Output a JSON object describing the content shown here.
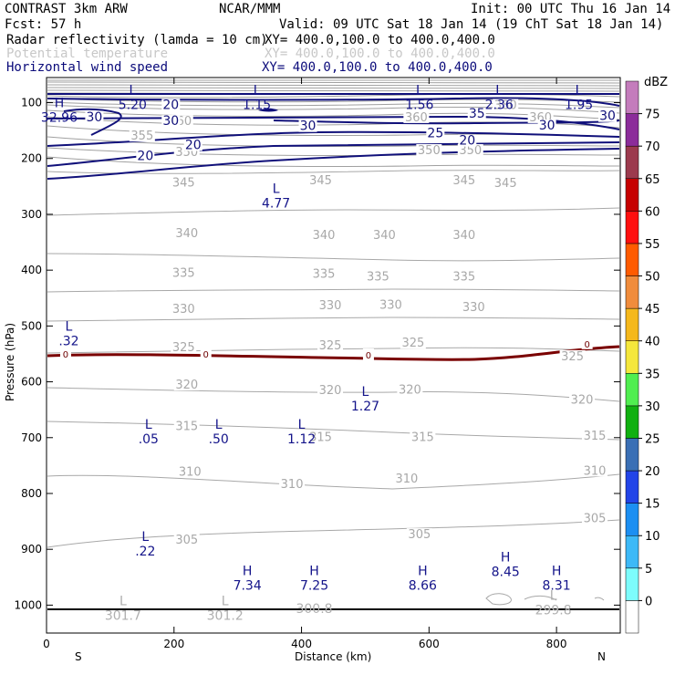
{
  "header": {
    "model": "CONTRAST  3km ARW",
    "org": "NCAR/MMM",
    "init": "Init: 00 UTC Thu 16 Jan 14",
    "fcst": "Fcst:   57 h",
    "valid": "Valid: 09 UTC Sat 18 Jan 14 (19 ChT Sat 18 Jan 14)",
    "fields": [
      {
        "name": "Radar reflectivity (lamda = 10 cm)",
        "xy": "XY= 400.0,100.0 to 400.0,400.0",
        "color": "#000000"
      },
      {
        "name": "Potential temperature",
        "xy": "XY= 400.0,100.0 to 400.0,400.0",
        "color": "#c8c8c8"
      },
      {
        "name": "Horizontal wind speed",
        "xy": "XY= 400.0,100.0 to 400.0,400.0",
        "color": "#0a0a7a"
      }
    ]
  },
  "chart_data": {
    "type": "contour",
    "xlabel": "Distance (km)",
    "ylabel": "Pressure (hPa)",
    "xlim": [
      0,
      900
    ],
    "ylim": [
      1050,
      55
    ],
    "xticks": [
      "0",
      "200",
      "400",
      "600",
      "800"
    ],
    "yticks": [
      "100",
      "200",
      "300",
      "400",
      "500",
      "600",
      "700",
      "800",
      "900",
      "1000"
    ],
    "x_end_labels": {
      "left": "S",
      "right": "N"
    },
    "colorbar": {
      "unit": "dBZ",
      "levels": [
        "0",
        "5",
        "10",
        "15",
        "20",
        "25",
        "30",
        "35",
        "40",
        "45",
        "50",
        "55",
        "60",
        "65",
        "70",
        "75"
      ],
      "colors": [
        "#ffffff",
        "#7dfcfc",
        "#3db9f7",
        "#1c8ff2",
        "#2244e8",
        "#3a6fb5",
        "#10b010",
        "#50ee50",
        "#f5e73c",
        "#f5b81c",
        "#f08c3c",
        "#ff5b00",
        "#ff0f0f",
        "#c60000",
        "#9c3a4e",
        "#8c2c9a",
        "#c47cbc"
      ]
    },
    "theta_labels": [
      {
        "text": "380",
        "x": 720,
        "p": 108
      },
      {
        "text": "360",
        "x": 210,
        "p": 137
      },
      {
        "text": "360",
        "x": 580,
        "p": 130
      },
      {
        "text": "360",
        "x": 775,
        "p": 130
      },
      {
        "text": "355",
        "x": 150,
        "p": 163
      },
      {
        "text": "350",
        "x": 220,
        "p": 192
      },
      {
        "text": "350",
        "x": 600,
        "p": 189
      },
      {
        "text": "350",
        "x": 665,
        "p": 189
      },
      {
        "text": "345",
        "x": 215,
        "p": 247
      },
      {
        "text": "345",
        "x": 430,
        "p": 243
      },
      {
        "text": "345",
        "x": 655,
        "p": 243
      },
      {
        "text": "345",
        "x": 720,
        "p": 248
      },
      {
        "text": "340",
        "x": 220,
        "p": 338
      },
      {
        "text": "340",
        "x": 435,
        "p": 341
      },
      {
        "text": "340",
        "x": 530,
        "p": 341
      },
      {
        "text": "340",
        "x": 655,
        "p": 341
      },
      {
        "text": "335",
        "x": 215,
        "p": 409
      },
      {
        "text": "335",
        "x": 435,
        "p": 410
      },
      {
        "text": "335",
        "x": 520,
        "p": 415
      },
      {
        "text": "335",
        "x": 655,
        "p": 415
      },
      {
        "text": "330",
        "x": 215,
        "p": 473
      },
      {
        "text": "330",
        "x": 445,
        "p": 467
      },
      {
        "text": "330",
        "x": 540,
        "p": 466
      },
      {
        "text": "330",
        "x": 670,
        "p": 470
      },
      {
        "text": "325",
        "x": 215,
        "p": 542
      },
      {
        "text": "325",
        "x": 445,
        "p": 539
      },
      {
        "text": "325",
        "x": 575,
        "p": 534
      },
      {
        "text": "325",
        "x": 825,
        "p": 558
      },
      {
        "text": "320",
        "x": 220,
        "p": 609
      },
      {
        "text": "320",
        "x": 445,
        "p": 619
      },
      {
        "text": "320",
        "x": 570,
        "p": 618
      },
      {
        "text": "320",
        "x": 840,
        "p": 636
      },
      {
        "text": "315",
        "x": 220,
        "p": 683
      },
      {
        "text": "315",
        "x": 430,
        "p": 703
      },
      {
        "text": "315",
        "x": 590,
        "p": 703
      },
      {
        "text": "315",
        "x": 860,
        "p": 700
      },
      {
        "text": "310",
        "x": 225,
        "p": 765
      },
      {
        "text": "310",
        "x": 385,
        "p": 787
      },
      {
        "text": "310",
        "x": 565,
        "p": 777
      },
      {
        "text": "310",
        "x": 860,
        "p": 763
      },
      {
        "text": "305",
        "x": 220,
        "p": 887
      },
      {
        "text": "305",
        "x": 585,
        "p": 877
      },
      {
        "text": "305",
        "x": 860,
        "p": 848
      }
    ],
    "wind_labels": [
      {
        "text": "20",
        "x": 195,
        "p": 108
      },
      {
        "text": "30",
        "x": 75,
        "p": 130
      },
      {
        "text": "30",
        "x": 195,
        "p": 137
      },
      {
        "text": "30",
        "x": 410,
        "p": 146
      },
      {
        "text": "35",
        "x": 675,
        "p": 124
      },
      {
        "text": "30",
        "x": 785,
        "p": 145
      },
      {
        "text": "30",
        "x": 880,
        "p": 128
      },
      {
        "text": "25",
        "x": 610,
        "p": 159
      },
      {
        "text": "20",
        "x": 660,
        "p": 172
      },
      {
        "text": "20",
        "x": 230,
        "p": 180
      },
      {
        "text": "20",
        "x": 155,
        "p": 200
      }
    ],
    "zero_dbz_labels": [
      {
        "text": "0",
        "x": 30,
        "p": 553
      },
      {
        "text": "0",
        "x": 250,
        "p": 553
      },
      {
        "text": "0",
        "x": 505,
        "p": 555
      },
      {
        "text": "0",
        "x": 848,
        "p": 535
      }
    ],
    "extrema": [
      {
        "letter": "L",
        "value": "5.20",
        "x": 135,
        "p": 85,
        "color": "#14148a"
      },
      {
        "letter": "L",
        "value": "1.15",
        "x": 330,
        "p": 85,
        "color": "#14148a"
      },
      {
        "letter": "L",
        "value": "1.56",
        "x": 585,
        "p": 85,
        "color": "#14148a"
      },
      {
        "letter": "L",
        "value": "2.36",
        "x": 710,
        "p": 85,
        "color": "#14148a"
      },
      {
        "letter": "L",
        "value": "1.95",
        "x": 835,
        "p": 85,
        "color": "#14148a"
      },
      {
        "letter": "H",
        "value": "32.96",
        "x": 20,
        "p": 108,
        "color": "#14148a"
      },
      {
        "letter": "L",
        "value": "4.77",
        "x": 360,
        "p": 262,
        "color": "#14148a"
      },
      {
        "letter": "L",
        "value": ".32",
        "x": 35,
        "p": 508,
        "color": "#14148a"
      },
      {
        "letter": "L",
        "value": "1.27",
        "x": 500,
        "p": 625,
        "color": "#14148a"
      },
      {
        "letter": "L",
        "value": ".05",
        "x": 160,
        "p": 684,
        "color": "#14148a"
      },
      {
        "letter": "L",
        "value": ".50",
        "x": 270,
        "p": 684,
        "color": "#14148a"
      },
      {
        "letter": "L",
        "value": "1.12",
        "x": 400,
        "p": 684,
        "color": "#14148a"
      },
      {
        "letter": "L",
        "value": ".22",
        "x": 155,
        "p": 885,
        "color": "#14148a"
      },
      {
        "letter": "H",
        "value": "7.34",
        "x": 315,
        "p": 946,
        "color": "#14148a"
      },
      {
        "letter": "H",
        "value": "7.25",
        "x": 420,
        "p": 946,
        "color": "#14148a"
      },
      {
        "letter": "H",
        "value": "8.66",
        "x": 590,
        "p": 946,
        "color": "#14148a"
      },
      {
        "letter": "H",
        "value": "8.45",
        "x": 720,
        "p": 922,
        "color": "#14148a"
      },
      {
        "letter": "H",
        "value": "8.31",
        "x": 800,
        "p": 946,
        "color": "#14148a"
      },
      {
        "letter": "L",
        "value": "301.7",
        "x": 120,
        "p": 1000,
        "color": "#b0b0b0"
      },
      {
        "letter": "L",
        "value": "301.2",
        "x": 280,
        "p": 1000,
        "color": "#b0b0b0"
      },
      {
        "letter": "",
        "value": "300.8",
        "x": 420,
        "p": 988,
        "color": "#b0b0b0"
      },
      {
        "letter": "L",
        "value": "299.8",
        "x": 795,
        "p": 990,
        "color": "#b0b0b0"
      }
    ]
  }
}
